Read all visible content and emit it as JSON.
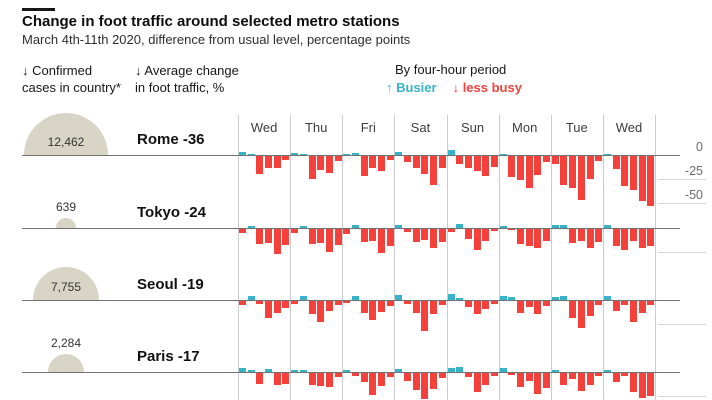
{
  "header": {
    "title": "Change in foot traffic around selected metro stations",
    "subtitle": "March 4th-11th 2020, difference from usual level, percentage points"
  },
  "columns": {
    "cases_line1": "↓ Confirmed",
    "cases_line2": "cases in country*",
    "traffic_line1": "↓ Average change",
    "traffic_line2": "in foot traffic, %"
  },
  "legend": {
    "title": "By four-hour period",
    "busier": "↑ Busier",
    "less_busy": "↓ less busy"
  },
  "colors": {
    "busier": "#36b3c9",
    "less_busy": "#f4413c",
    "semicircle": "#d8d5c7",
    "zero_line": "#737373",
    "grid": "#cccccc"
  },
  "chart_data": {
    "type": "bar",
    "title": "Change in foot traffic around selected metro stations",
    "subtitle": "March 4th-11th 2020, difference from usual level, percentage points",
    "ylabel": "difference from usual level, percentage points",
    "day_labels": [
      "Wed",
      "Thu",
      "Fri",
      "Sat",
      "Sun",
      "Mon",
      "Tue",
      "Wed"
    ],
    "periods_per_day": 6,
    "period_hours": 4,
    "y_ticks": [
      "0",
      "-25",
      "-50"
    ],
    "ylim": [
      -55,
      8
    ],
    "legend_position": "top",
    "grid": "vertical day separators, right-margin y ticks",
    "series": [
      {
        "city": "Rome",
        "label": "Rome -36",
        "avg_change": -36,
        "confirmed_cases": "12,462",
        "cases_value": 12462,
        "values": [
          [
            3,
            1,
            -19,
            -12,
            -13,
            -4
          ],
          [
            2,
            1,
            -24,
            -15,
            -18,
            -5
          ],
          [
            1,
            2,
            -21,
            -13,
            -16,
            -4
          ],
          [
            3,
            -6,
            -13,
            -19,
            -30,
            -12
          ],
          [
            5,
            -8,
            -13,
            -16,
            -21,
            -11
          ],
          [
            1,
            -22,
            -25,
            -33,
            -20,
            -6
          ],
          [
            -8,
            -30,
            -33,
            -46,
            -24,
            -5
          ],
          [
            1,
            -14,
            -31,
            -35,
            -47,
            -52
          ]
        ]
      },
      {
        "city": "Tokyo",
        "label": "Tokyo -24",
        "avg_change": -24,
        "confirmed_cases": "639",
        "cases_value": 639,
        "values": [
          [
            -4,
            2,
            -16,
            -15,
            -26,
            -17
          ],
          [
            -4,
            2,
            -16,
            -15,
            -24,
            -17
          ],
          [
            -5,
            3,
            -14,
            -12,
            -25,
            -18
          ],
          [
            3,
            -3,
            -14,
            -11,
            -20,
            -14
          ],
          [
            -3,
            4,
            -10,
            -22,
            -13,
            -2
          ],
          [
            2,
            -1,
            -16,
            -18,
            -20,
            -13
          ],
          [
            3,
            3,
            -15,
            -12,
            -20,
            -14
          ],
          [
            3,
            -18,
            -22,
            -13,
            -20,
            -18
          ]
        ]
      },
      {
        "city": "Seoul",
        "label": "Seoul -19",
        "avg_change": -19,
        "confirmed_cases": "7,755",
        "cases_value": 7755,
        "values": [
          [
            -4,
            4,
            -3,
            -18,
            -12,
            -7
          ],
          [
            -3,
            4,
            -14,
            -22,
            -10,
            -4
          ],
          [
            -2,
            4,
            -12,
            -20,
            -11,
            -5
          ],
          [
            5,
            -3,
            -12,
            -31,
            -14,
            -4
          ],
          [
            6,
            2,
            -6,
            -14,
            -8,
            -3
          ],
          [
            4,
            3,
            -12,
            -6,
            -14,
            -5
          ],
          [
            3,
            4,
            -18,
            -28,
            -16,
            -4
          ],
          [
            4,
            -10,
            -4,
            -22,
            -13,
            -4
          ]
        ]
      },
      {
        "city": "Paris",
        "label": "Paris -17",
        "avg_change": -17,
        "confirmed_cases": "2,284",
        "cases_value": 2284,
        "values": [
          [
            4,
            2,
            -11,
            3,
            -13,
            -11
          ],
          [
            2,
            2,
            -12,
            -14,
            -15,
            -4
          ],
          [
            2,
            -3,
            -9,
            -23,
            -14,
            -4
          ],
          [
            3,
            -8,
            -18,
            -27,
            -17,
            -5
          ],
          [
            4,
            5,
            -4,
            -20,
            -12,
            -3
          ],
          [
            4,
            -2,
            -15,
            -8,
            -22,
            -16
          ],
          [
            2,
            -13,
            -6,
            -19,
            -13,
            -3
          ],
          [
            2,
            -9,
            -3,
            -20,
            -26,
            -24
          ]
        ]
      }
    ]
  }
}
